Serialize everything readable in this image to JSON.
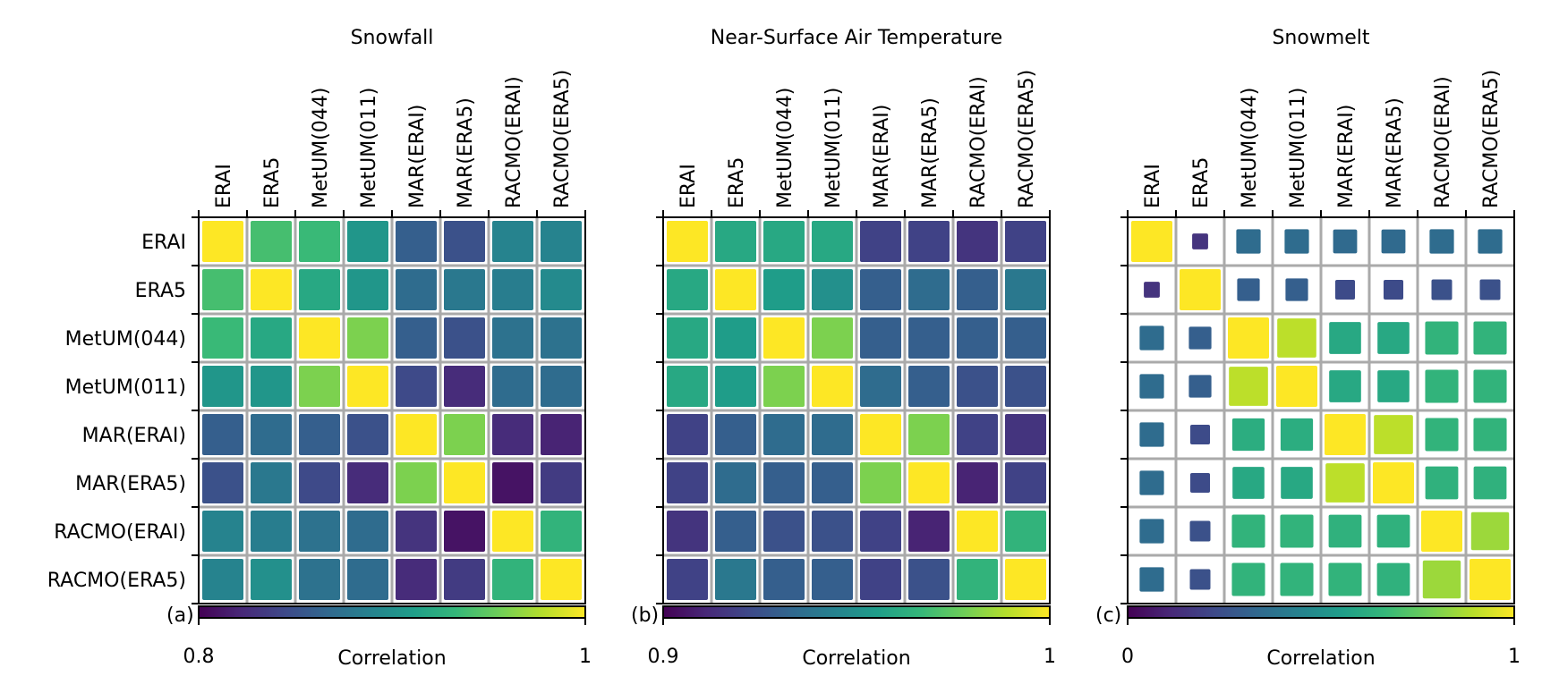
{
  "labels": [
    "ERAI",
    "ERA5",
    "MetUM(044)",
    "MetUM(011)",
    "MAR(ERAI)",
    "MAR(ERA5)",
    "RACMO(ERAI)",
    "RACMO(ERA5)"
  ],
  "colormap": "viridis",
  "colormap_stops": [
    "#440154",
    "#482878",
    "#3e4989",
    "#31688e",
    "#26828e",
    "#1f9e89",
    "#35b779",
    "#6ece58",
    "#b5de2b",
    "#fde725"
  ],
  "grid_color": "#aaaaaa",
  "colorbar_label": "Correlation",
  "chart_data": [
    {
      "type": "heatmap",
      "panel": "(a)",
      "title": "Snowfall",
      "vmin": 0.8,
      "vmax": 1,
      "vmin_label": "0.8",
      "vmax_label": "1",
      "size_encodes_value": false,
      "values": [
        [
          1.0,
          0.94,
          0.935,
          0.905,
          0.86,
          0.85,
          0.89,
          0.89
        ],
        [
          0.94,
          1.0,
          0.92,
          0.905,
          0.87,
          0.88,
          0.885,
          0.895
        ],
        [
          0.935,
          0.92,
          1.0,
          0.96,
          0.86,
          0.85,
          0.875,
          0.875
        ],
        [
          0.905,
          0.905,
          0.96,
          1.0,
          0.845,
          0.825,
          0.87,
          0.87
        ],
        [
          0.86,
          0.87,
          0.86,
          0.85,
          1.0,
          0.96,
          0.825,
          0.82
        ],
        [
          0.85,
          0.88,
          0.845,
          0.825,
          0.96,
          1.0,
          0.81,
          0.835
        ],
        [
          0.89,
          0.885,
          0.875,
          0.87,
          0.83,
          0.81,
          1.0,
          0.93
        ],
        [
          0.89,
          0.9,
          0.875,
          0.87,
          0.825,
          0.835,
          0.93,
          1.0
        ]
      ]
    },
    {
      "type": "heatmap",
      "panel": "(b)",
      "title": "Near-Surface Air Temperature",
      "vmin": 0.9,
      "vmax": 1,
      "vmin_label": "0.9",
      "vmax_label": "1",
      "size_encodes_value": false,
      "values": [
        [
          1.0,
          0.96,
          0.96,
          0.96,
          0.92,
          0.92,
          0.915,
          0.92
        ],
        [
          0.96,
          1.0,
          0.955,
          0.95,
          0.93,
          0.935,
          0.93,
          0.94
        ],
        [
          0.96,
          0.955,
          1.0,
          0.98,
          0.93,
          0.93,
          0.93,
          0.93
        ],
        [
          0.96,
          0.955,
          0.98,
          1.0,
          0.935,
          0.93,
          0.925,
          0.925
        ],
        [
          0.92,
          0.93,
          0.935,
          0.935,
          1.0,
          0.98,
          0.92,
          0.915
        ],
        [
          0.92,
          0.935,
          0.93,
          0.93,
          0.98,
          1.0,
          0.91,
          0.92
        ],
        [
          0.915,
          0.93,
          0.925,
          0.925,
          0.92,
          0.91,
          1.0,
          0.965
        ],
        [
          0.92,
          0.94,
          0.93,
          0.93,
          0.92,
          0.925,
          0.965,
          1.0
        ]
      ]
    },
    {
      "type": "heatmap",
      "panel": "(c)",
      "title": "Snowmelt",
      "vmin": 0,
      "vmax": 1,
      "vmin_label": "0",
      "vmax_label": "1",
      "size_encodes_value": true,
      "values": [
        [
          1.0,
          0.15,
          0.35,
          0.35,
          0.34,
          0.34,
          0.35,
          0.35
        ],
        [
          0.15,
          1.0,
          0.3,
          0.3,
          0.23,
          0.23,
          0.25,
          0.25
        ],
        [
          0.35,
          0.3,
          1.0,
          0.9,
          0.6,
          0.6,
          0.65,
          0.65
        ],
        [
          0.35,
          0.3,
          0.9,
          1.0,
          0.6,
          0.6,
          0.65,
          0.65
        ],
        [
          0.35,
          0.23,
          0.62,
          0.62,
          1.0,
          0.9,
          0.65,
          0.65
        ],
        [
          0.35,
          0.23,
          0.6,
          0.6,
          0.9,
          1.0,
          0.64,
          0.64
        ],
        [
          0.35,
          0.25,
          0.65,
          0.65,
          0.64,
          0.64,
          1.0,
          0.85
        ],
        [
          0.35,
          0.25,
          0.65,
          0.65,
          0.65,
          0.64,
          0.85,
          1.0
        ]
      ]
    }
  ]
}
